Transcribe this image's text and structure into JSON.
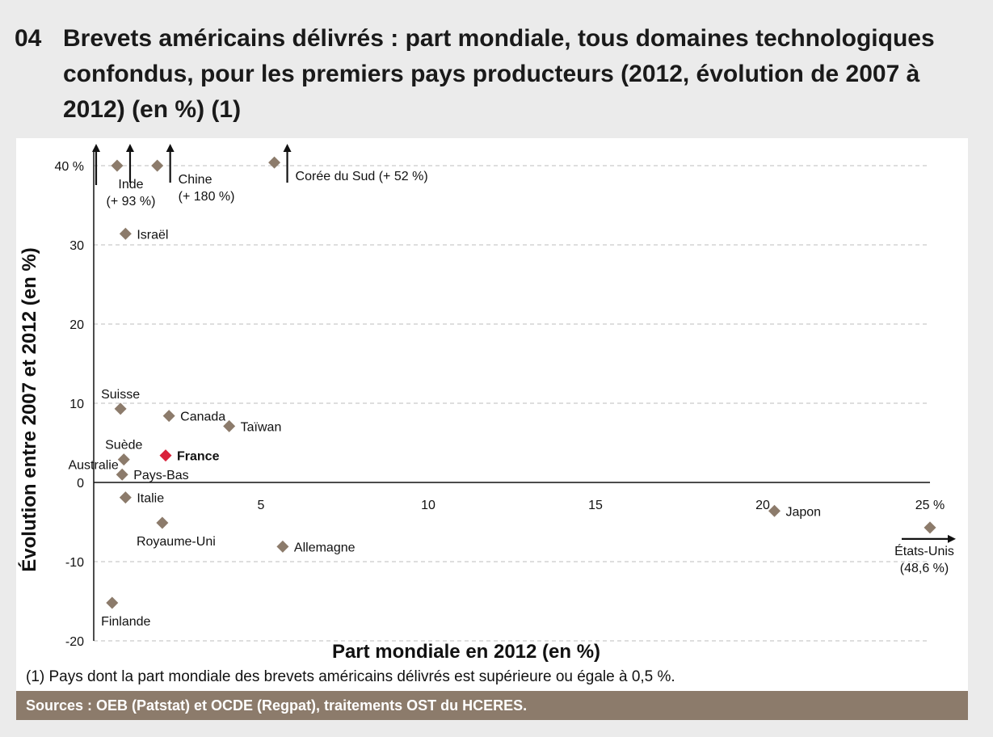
{
  "figure": {
    "number": "04",
    "title": "Brevets américains délivrés : part mondiale, tous domaines technologiques confondus, pour les premiers pays producteurs (2012, évolution de 2007 à 2012) (en %) (1)",
    "footnote": "(1) Pays dont la part mondiale des brevets américains délivrés est supérieure ou égale à 0,5 %.",
    "source": "Sources : OEB (Patstat) et OCDE (Regpat), traitements OST du HCERES."
  },
  "colors": {
    "marker": "#8c7b6b",
    "highlight": "#d9213a",
    "source_bar": "#8c7b6b",
    "gridline": "#bdbdbd"
  },
  "chart_data": {
    "type": "scatter",
    "xlabel": "Part mondiale en 2012 (en %)",
    "ylabel": "Évolution entre 2007 et 2012 (en %)",
    "xlim": [
      0,
      25
    ],
    "ylim": [
      -20,
      40
    ],
    "x_ticks": [
      {
        "value": 5,
        "label": "5"
      },
      {
        "value": 10,
        "label": "10"
      },
      {
        "value": 15,
        "label": "15"
      },
      {
        "value": 20,
        "label": "20"
      },
      {
        "value": 25,
        "label": "25 %"
      }
    ],
    "y_ticks": [
      {
        "value": 40,
        "label": "40 %"
      },
      {
        "value": 30,
        "label": "30"
      },
      {
        "value": 20,
        "label": "20"
      },
      {
        "value": 10,
        "label": "10"
      },
      {
        "value": 0,
        "label": "0"
      },
      {
        "value": -10,
        "label": "-10"
      },
      {
        "value": -20,
        "label": "-20"
      }
    ],
    "grid": "horizontal dashed",
    "points": [
      {
        "country": "Inde",
        "x": 0.7,
        "y": 40,
        "label_lines": [
          "Inde",
          "(+ 93 %)"
        ],
        "out_of_range": "up",
        "label_pos": "below"
      },
      {
        "country": "Chine",
        "x": 1.9,
        "y": 40,
        "label_lines": [
          "Chine",
          "(+ 180 %)"
        ],
        "out_of_range": "up",
        "label_pos": "below-right"
      },
      {
        "country": "Corée du Sud",
        "x": 5.4,
        "y": 40.4,
        "label_lines": [
          "Corée du Sud (+ 52 %)"
        ],
        "out_of_range": "up",
        "label_pos": "below-right"
      },
      {
        "country": "Israël",
        "x": 0.95,
        "y": 31.4,
        "label_lines": [
          "Israël"
        ],
        "label_pos": "right"
      },
      {
        "country": "Suisse",
        "x": 0.8,
        "y": 9.3,
        "label_lines": [
          "Suisse"
        ],
        "label_pos": "above"
      },
      {
        "country": "Canada",
        "x": 2.25,
        "y": 8.4,
        "label_lines": [
          "Canada"
        ],
        "label_pos": "right"
      },
      {
        "country": "Taïwan",
        "x": 4.05,
        "y": 7.1,
        "label_lines": [
          "Taïwan"
        ],
        "label_pos": "right"
      },
      {
        "country": "Suède",
        "x": 0.9,
        "y": 2.9,
        "label_lines": [
          "Suède"
        ],
        "label_pos": "above"
      },
      {
        "country": "France",
        "x": 2.15,
        "y": 3.4,
        "label_lines": [
          "France"
        ],
        "label_pos": "right",
        "highlight": true
      },
      {
        "country": "Australie",
        "x": 0.35,
        "y": 1.9,
        "label_lines": [
          "Australie"
        ],
        "label_only": true
      },
      {
        "country": "Pays-Bas",
        "x": 0.85,
        "y": 1.0,
        "label_lines": [
          "Pays-Bas"
        ],
        "label_pos": "right"
      },
      {
        "country": "Italie",
        "x": 0.95,
        "y": -1.9,
        "label_lines": [
          "Italie"
        ],
        "label_pos": "right"
      },
      {
        "country": "Royaume-Uni",
        "x": 2.05,
        "y": -5.1,
        "label_lines": [
          "Royaume-Uni"
        ],
        "label_pos": "below"
      },
      {
        "country": "Allemagne",
        "x": 5.65,
        "y": -8.1,
        "label_lines": [
          "Allemagne"
        ],
        "label_pos": "right"
      },
      {
        "country": "Japon",
        "x": 20.35,
        "y": -3.6,
        "label_lines": [
          "Japon"
        ],
        "label_pos": "right"
      },
      {
        "country": "États-Unis",
        "x": 25,
        "y": -5.7,
        "label_lines": [
          "États-Unis",
          "(48,6 %)"
        ],
        "out_of_range": "right",
        "label_pos": "below-left"
      },
      {
        "country": "Finlande",
        "x": 0.55,
        "y": -15.2,
        "label_lines": [
          "Finlande"
        ],
        "label_pos": "below"
      }
    ]
  }
}
